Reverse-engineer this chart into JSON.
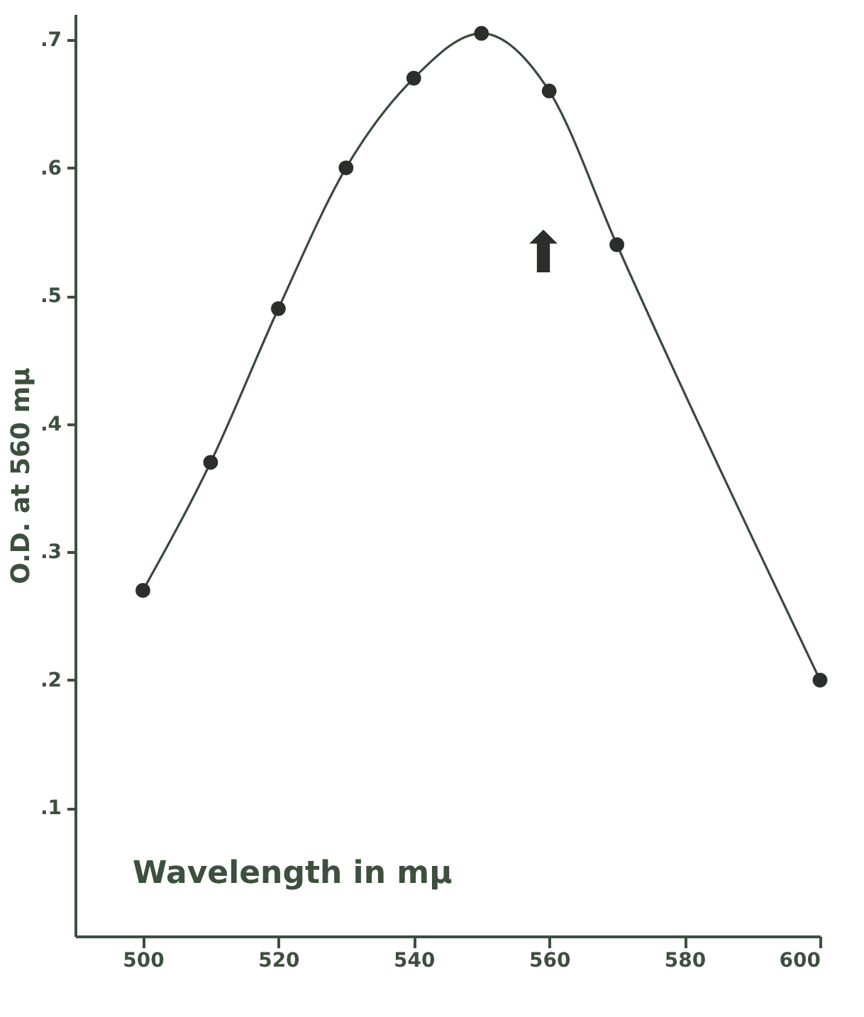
{
  "chart_data": {
    "type": "line",
    "xlabel": "Wavelength in mμ",
    "ylabel": "O.D. at 560 mμ",
    "x": [
      500,
      510,
      520,
      530,
      540,
      550,
      560,
      570,
      600
    ],
    "series": [
      {
        "color": "#3a4a3a",
        "values": [
          0.27,
          0.37,
          0.49,
          0.6,
          0.67,
          0.705,
          0.66,
          0.54,
          0.2
        ]
      }
    ],
    "marker": "circle",
    "line_style": "solid",
    "grid": false,
    "xlim": [
      490,
      600
    ],
    "ylim": [
      0,
      0.72
    ],
    "xticks": [
      500,
      520,
      540,
      560,
      580,
      600
    ],
    "yticks": [
      {
        "value": 0.1,
        "label": ".1"
      },
      {
        "value": 0.2,
        "label": ".2"
      },
      {
        "value": 0.3,
        "label": ".3"
      },
      {
        "value": 0.4,
        "label": ".4"
      },
      {
        "value": 0.5,
        "label": ".5"
      },
      {
        "value": 0.6,
        "label": ".6"
      },
      {
        "value": 0.7,
        "label": ".7"
      }
    ],
    "annotations": [
      "⬆"
    ]
  }
}
